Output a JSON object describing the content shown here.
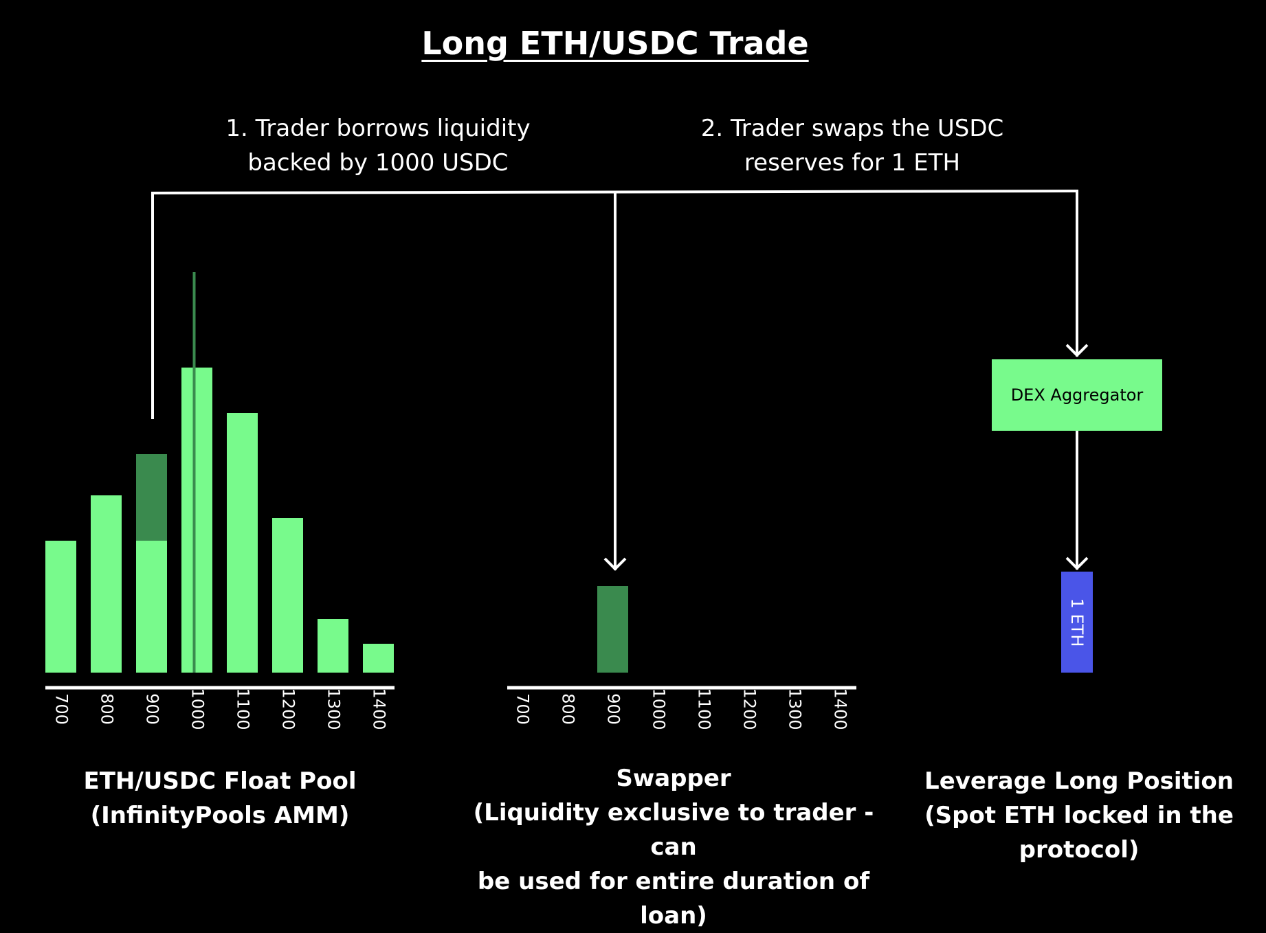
{
  "title": "Long ETH/USDC Trade",
  "steps": [
    {
      "label": "1. Trader borrows liquidity\nbacked by 1000 USDC"
    },
    {
      "label": "2. Trader swaps the USDC\nreserves for 1 ETH"
    }
  ],
  "dex_aggregator": {
    "label": "DEX Aggregator"
  },
  "eth_token": {
    "label": "1 ETH",
    "color": "#4a55e8"
  },
  "captions": {
    "pool": "ETH/USDC Float Pool\n(InfinityPools AMM)",
    "swapper": "Swapper\n(Liquidity exclusive to trader - can\nbe used for entire duration of loan)",
    "leverage": "Leverage Long Position\n(Spot ETH locked in the\nprotocol)"
  },
  "colors": {
    "liquidity": "#78fa8c",
    "borrowed": "#3a8a4e",
    "price_marker": "#3a8a4e",
    "line": "#ffffff",
    "background": "#000000"
  },
  "chart_data": [
    {
      "type": "bar",
      "name": "pool-histogram",
      "categories": [
        "700",
        "800",
        "900",
        "1000",
        "1100",
        "1200",
        "1300",
        "1400"
      ],
      "series": [
        {
          "name": "liquidity",
          "values": [
            192,
            258,
            192,
            444,
            378,
            225,
            78,
            42
          ]
        },
        {
          "name": "borrowed",
          "values": [
            0,
            0,
            126,
            0,
            0,
            0,
            0,
            0
          ]
        }
      ],
      "stacked": true,
      "price_marker": 1000,
      "ylim": [
        0,
        500
      ]
    },
    {
      "type": "bar",
      "name": "swapper-histogram",
      "categories": [
        "700",
        "800",
        "900",
        "1000",
        "1100",
        "1200",
        "1300",
        "1400"
      ],
      "series": [
        {
          "name": "borrowed",
          "values": [
            0,
            0,
            126,
            0,
            0,
            0,
            0,
            0
          ]
        }
      ],
      "ylim": [
        0,
        500
      ]
    }
  ]
}
